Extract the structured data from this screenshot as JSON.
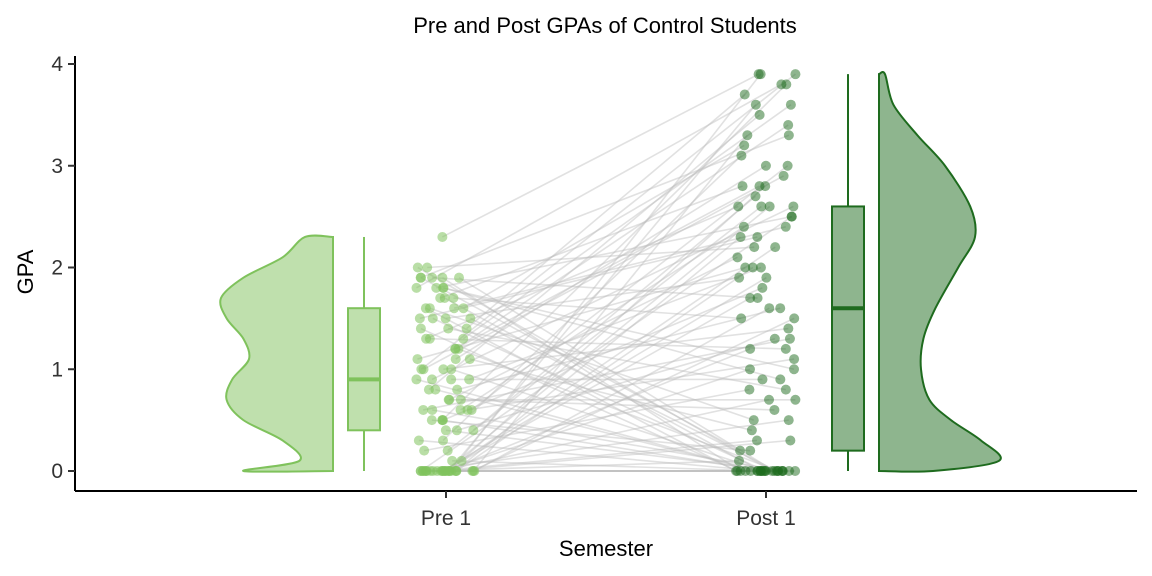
{
  "chart_data": {
    "type": "raincloud",
    "title": "Pre and Post GPAs of Control Students",
    "xlabel": "Semester",
    "ylabel": "GPA",
    "categories": [
      "Pre 1",
      "Post 1"
    ],
    "ylim": [
      0,
      4
    ],
    "yticks": [
      "0",
      "1",
      "2",
      "3",
      "4"
    ],
    "grid": false,
    "legend": "none",
    "colors": {
      "Pre 1": "#7FC25C",
      "Post 1": "#1E6B1E",
      "lines": "#BDBDBD"
    },
    "series": [
      {
        "category": "Pre 1",
        "boxplot": {
          "min": 0,
          "q1": 0.4,
          "median": 0.9,
          "q3": 1.6,
          "max": 2.3
        },
        "density": {
          "y": [
            0,
            0.1,
            0.3,
            0.5,
            0.7,
            0.9,
            1.1,
            1.3,
            1.5,
            1.7,
            1.9,
            2.1,
            2.3
          ],
          "width": [
            0.8,
            0.3,
            0.45,
            0.8,
            0.95,
            0.9,
            0.75,
            0.8,
            0.95,
            1.0,
            0.8,
            0.45,
            0.25
          ]
        }
      },
      {
        "category": "Post 1",
        "boxplot": {
          "min": 0,
          "q1": 0.2,
          "median": 1.6,
          "q3": 2.6,
          "max": 3.9
        },
        "density": {
          "y": [
            0,
            0.1,
            0.3,
            0.5,
            0.7,
            1.0,
            1.3,
            1.6,
            2.0,
            2.3,
            2.6,
            3.0,
            3.3,
            3.6,
            3.9
          ],
          "width": [
            0.45,
            1.0,
            0.85,
            0.6,
            0.42,
            0.35,
            0.37,
            0.47,
            0.66,
            0.8,
            0.76,
            0.55,
            0.32,
            0.12,
            0.05
          ]
        }
      }
    ],
    "pairs": [
      [
        0,
        2.6
      ],
      [
        0,
        0
      ],
      [
        0,
        1.9
      ],
      [
        0,
        0.5
      ],
      [
        0,
        3.9
      ],
      [
        0,
        0
      ],
      [
        0,
        2.3
      ],
      [
        0,
        1.2
      ],
      [
        0,
        0
      ],
      [
        0,
        2.8
      ],
      [
        0,
        0.1
      ],
      [
        0,
        1.5
      ],
      [
        0,
        0
      ],
      [
        0,
        3.3
      ],
      [
        0,
        0.7
      ],
      [
        0,
        2.0
      ],
      [
        0,
        0
      ],
      [
        0,
        1.0
      ],
      [
        0,
        3.6
      ],
      [
        0,
        0
      ],
      [
        0,
        0.3
      ],
      [
        0,
        2.5
      ],
      [
        0,
        0
      ],
      [
        0,
        1.7
      ],
      [
        0.1,
        0
      ],
      [
        0.1,
        2.2
      ],
      [
        0.2,
        0.8
      ],
      [
        0.3,
        3.1
      ],
      [
        0.3,
        0
      ],
      [
        0.4,
        1.3
      ],
      [
        0.4,
        2.7
      ],
      [
        0.5,
        0
      ],
      [
        0.5,
        3.8
      ],
      [
        0.5,
        1.8
      ],
      [
        0.5,
        0.2
      ],
      [
        0.6,
        2.4
      ],
      [
        0.6,
        0
      ],
      [
        0.6,
        1.1
      ],
      [
        0.6,
        3.0
      ],
      [
        0.7,
        0.6
      ],
      [
        0.7,
        2.1
      ],
      [
        0.8,
        0
      ],
      [
        0.8,
        3.5
      ],
      [
        0.8,
        1.6
      ],
      [
        0.9,
        2.6
      ],
      [
        0.9,
        0
      ],
      [
        0.9,
        0.9
      ],
      [
        1.0,
        3.9
      ],
      [
        1.0,
        1.4
      ],
      [
        1.0,
        0
      ],
      [
        1.0,
        2.9
      ],
      [
        1.1,
        0.4
      ],
      [
        1.1,
        2.0
      ],
      [
        1.2,
        0
      ],
      [
        1.2,
        3.4
      ],
      [
        1.3,
        1.2
      ],
      [
        1.3,
        2.6
      ],
      [
        1.4,
        0
      ],
      [
        1.4,
        0.8
      ],
      [
        1.4,
        3.7
      ],
      [
        1.5,
        1.9
      ],
      [
        1.5,
        0
      ],
      [
        1.5,
        2.3
      ],
      [
        1.6,
        0.5
      ],
      [
        1.6,
        3.2
      ],
      [
        1.6,
        0
      ],
      [
        1.7,
        1.5
      ],
      [
        1.7,
        2.8
      ],
      [
        1.7,
        0
      ],
      [
        1.8,
        3.8
      ],
      [
        1.8,
        0.9
      ],
      [
        1.8,
        2.5
      ],
      [
        1.9,
        0
      ],
      [
        1.9,
        1.7
      ],
      [
        1.9,
        3.3
      ],
      [
        1.9,
        0.2
      ],
      [
        2.0,
        2.2
      ],
      [
        2.0,
        0
      ],
      [
        2.3,
        3.9
      ],
      [
        0,
        0.3
      ],
      [
        0.2,
        2.6
      ],
      [
        0.6,
        1.3
      ],
      [
        1.1,
        3.0
      ],
      [
        1.5,
        0
      ],
      [
        1.8,
        1.0
      ],
      [
        0.9,
        2.0
      ],
      [
        0.4,
        0
      ],
      [
        1.3,
        3.6
      ],
      [
        0.7,
        0.7
      ],
      [
        1.6,
        2.4
      ],
      [
        1.9,
        0
      ],
      [
        0,
        1.6
      ],
      [
        1.2,
        2.8
      ]
    ]
  }
}
